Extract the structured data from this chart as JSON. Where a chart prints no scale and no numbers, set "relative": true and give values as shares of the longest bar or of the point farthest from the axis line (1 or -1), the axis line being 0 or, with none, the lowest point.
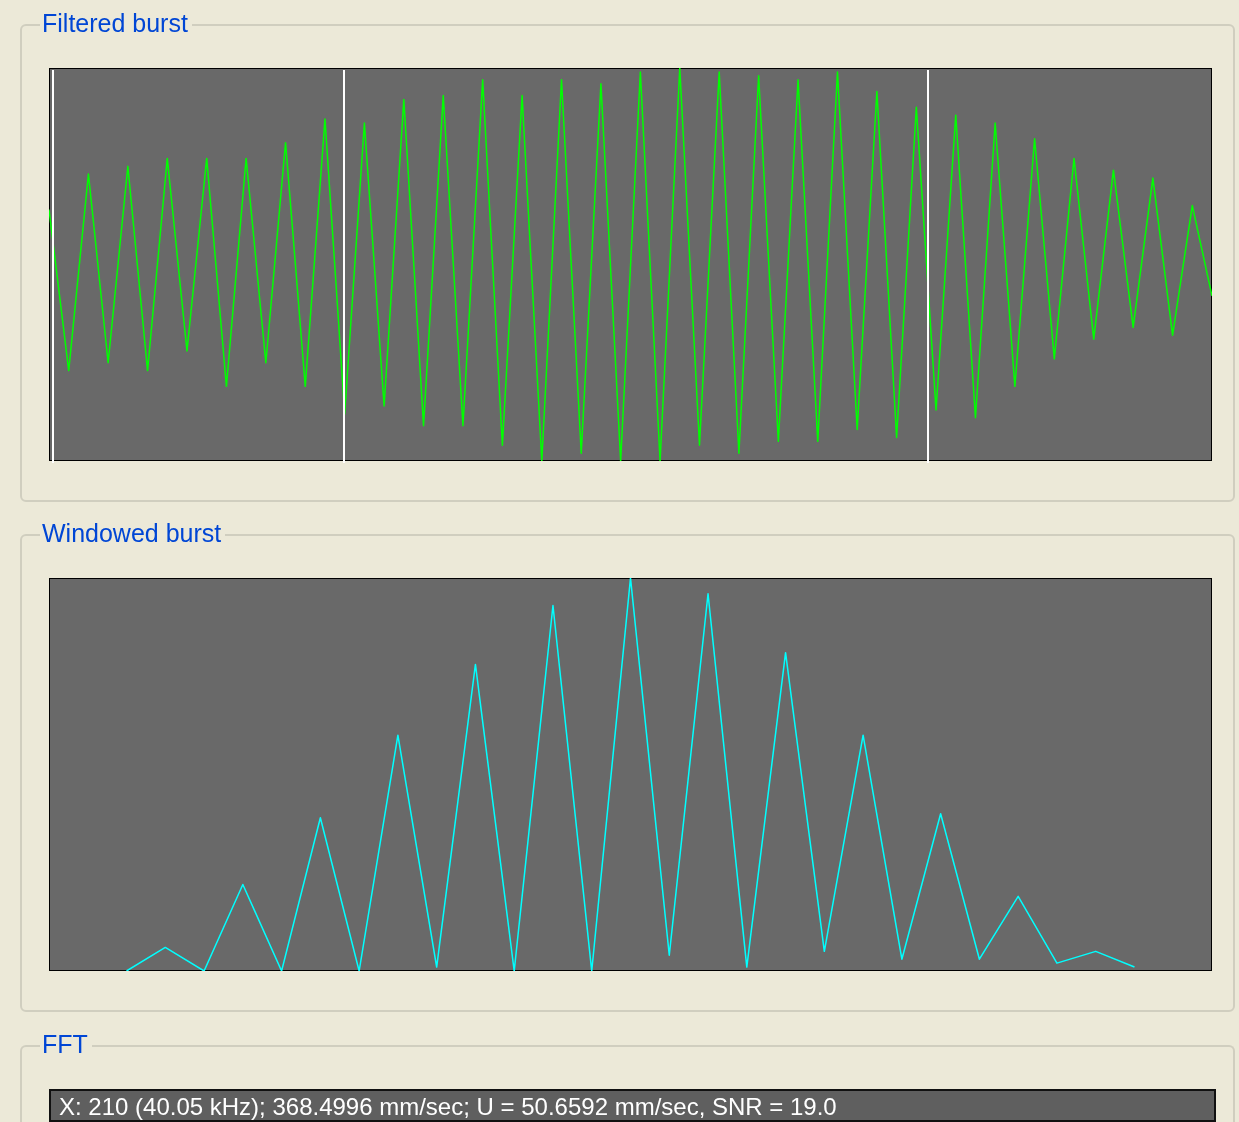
{
  "chart_data": [
    {
      "type": "line",
      "title": "Filtered burst",
      "relative": true,
      "categories": [
        null,
        null,
        null,
        null,
        null,
        null,
        null,
        null,
        null,
        null,
        null,
        null,
        null,
        null,
        null,
        null,
        null,
        null,
        null,
        null,
        null,
        null,
        null,
        null,
        null,
        null,
        null,
        null,
        null,
        null,
        null,
        null,
        null,
        null,
        null,
        null,
        null,
        null,
        null,
        null,
        null,
        null,
        null,
        null,
        null,
        null,
        null,
        null,
        null,
        null,
        null,
        null,
        null,
        null,
        null,
        null,
        null,
        null,
        null,
        null
      ],
      "series": [
        {
          "color": "#00ff00",
          "values": [
            0.64,
            0.23,
            0.73,
            0.25,
            0.75,
            0.23,
            0.77,
            0.28,
            0.77,
            0.19,
            0.77,
            0.25,
            0.81,
            0.19,
            0.87,
            0.12,
            0.86,
            0.14,
            0.92,
            0.09,
            0.93,
            0.09,
            0.97,
            0.04,
            0.93,
            0,
            0.97,
            0.02,
            0.96,
            0,
            0.99,
            0,
            1,
            0.04,
            0.99,
            0.02,
            0.98,
            0.05,
            0.97,
            0.05,
            0.99,
            0.08,
            0.94,
            0.06,
            0.9,
            0.13,
            0.88,
            0.11,
            0.86,
            0.19,
            0.82,
            0.26,
            0.77,
            0.31,
            0.74,
            0.34,
            0.72,
            0.32,
            0.65,
            0.42
          ]
        }
      ]
    },
    {
      "type": "line",
      "title": "Windowed burst",
      "relative": true,
      "categories": [
        null,
        null,
        null,
        null,
        null,
        null,
        null,
        null,
        null,
        null,
        null,
        null,
        null,
        null,
        null,
        null,
        null,
        null,
        null,
        null,
        null,
        null,
        null,
        null,
        null,
        null,
        null,
        null,
        null,
        null,
        null
      ],
      "series": [
        {
          "color": "#00ffff",
          "values": [
            null,
            null,
            0,
            0.06,
            0,
            0.22,
            0,
            0.39,
            0,
            0.6,
            0.01,
            0.78,
            0,
            0.93,
            0,
            1,
            0.04,
            0.96,
            0.01,
            0.81,
            0.05,
            0.6,
            0.03,
            0.4,
            0.03,
            0.19,
            0.02,
            0.05,
            0.01,
            null,
            null
          ]
        }
      ]
    },
    {
      "type": "other",
      "title": "FFT",
      "annotations": [
        "X: 210 (40.05 kHz); 368.4996 mm/sec; U = 50.6592 mm/sec, SNR = 19.0"
      ]
    }
  ]
}
